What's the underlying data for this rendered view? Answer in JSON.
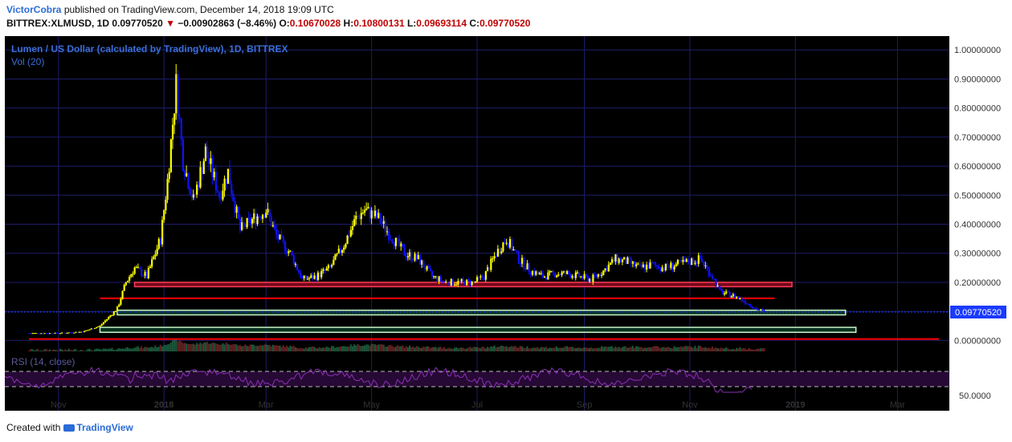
{
  "header": {
    "author": "VictorCobra",
    "published_text": "published on TradingView.com, December 14, 2018 19:09 UTC",
    "symbol": "BITTREX:XLMUSD, 1D",
    "price": "0.09770520",
    "change": "−0.00902863 (−8.46%)",
    "open_label": "O:",
    "open": "0.10670028",
    "high_label": "H:",
    "high": "0.10800131",
    "low_label": "L:",
    "low": "0.09693114",
    "close_label": "C:",
    "close": "0.09770520"
  },
  "footer": {
    "created_with": "Created with",
    "brand": "TradingView"
  },
  "colors": {
    "background": "#000000",
    "grid": "#1d1d6b",
    "up_candle": "#ffff00",
    "down_candle": "#1010ff",
    "resistance": "#ff0000",
    "support": "#c8f5c8",
    "rsi": "#8b2fb8",
    "last_price": "#1a3aff"
  },
  "chart_data": {
    "type": "line",
    "title": "Lumen / US Dollar (calculated by TradingView), 1D, BITTREX",
    "volume_label": "Vol (20)",
    "rsi_label": "RSI (14, close)",
    "rsi_level_label": "50.0000",
    "last_price_label": "0.09770520",
    "x_ticks": [
      "Nov",
      "2018",
      "Mar",
      "May",
      "Jul",
      "Sep",
      "Nov",
      "2019",
      "Mar"
    ],
    "y_ticks": [
      "1.00000000",
      "0.90000000",
      "0.80000000",
      "0.70000000",
      "0.60000000",
      "0.50000000",
      "0.40000000",
      "0.30000000",
      "0.20000000",
      "0.10000000",
      "0.00000000"
    ],
    "ylim": [
      -0.01,
      1.02
    ],
    "x": [
      "2017-10-15",
      "2017-11-01",
      "2017-11-15",
      "2017-11-25",
      "2017-12-05",
      "2017-12-10",
      "2017-12-15",
      "2017-12-22",
      "2017-12-30",
      "2018-01-03",
      "2018-01-08",
      "2018-01-12",
      "2018-01-18",
      "2018-01-25",
      "2018-02-02",
      "2018-02-07",
      "2018-02-14",
      "2018-02-22",
      "2018-03-01",
      "2018-03-07",
      "2018-03-15",
      "2018-03-22",
      "2018-03-30",
      "2018-04-07",
      "2018-04-15",
      "2018-04-22",
      "2018-04-27",
      "2018-05-05",
      "2018-05-12",
      "2018-05-20",
      "2018-05-28",
      "2018-06-05",
      "2018-06-13",
      "2018-06-21",
      "2018-06-29",
      "2018-07-05",
      "2018-07-12",
      "2018-07-18",
      "2018-07-25",
      "2018-08-01",
      "2018-08-08",
      "2018-08-15",
      "2018-08-22",
      "2018-08-29",
      "2018-09-05",
      "2018-09-12",
      "2018-09-19",
      "2018-09-26",
      "2018-10-03",
      "2018-10-10",
      "2018-10-17",
      "2018-10-24",
      "2018-10-31",
      "2018-11-07",
      "2018-11-14",
      "2018-11-18",
      "2018-11-22",
      "2018-11-28",
      "2018-12-04",
      "2018-12-09",
      "2018-12-14"
    ],
    "series": [
      {
        "values": [
          0.025,
          0.025,
          0.03,
          0.05,
          0.11,
          0.2,
          0.25,
          0.22,
          0.35,
          0.55,
          0.88,
          0.62,
          0.48,
          0.65,
          0.5,
          0.58,
          0.38,
          0.42,
          0.45,
          0.36,
          0.3,
          0.21,
          0.22,
          0.25,
          0.33,
          0.42,
          0.45,
          0.42,
          0.36,
          0.3,
          0.28,
          0.22,
          0.2,
          0.2,
          0.2,
          0.22,
          0.3,
          0.35,
          0.28,
          0.24,
          0.22,
          0.23,
          0.23,
          0.22,
          0.21,
          0.24,
          0.28,
          0.27,
          0.25,
          0.26,
          0.25,
          0.26,
          0.27,
          0.28,
          0.22,
          0.17,
          0.16,
          0.15,
          0.13,
          0.11,
          0.098
        ]
      }
    ],
    "annotations": [
      {
        "kind": "zone",
        "color": "red",
        "from": "2017-12-15",
        "to": "2018-12-30",
        "y_low": 0.185,
        "y_high": 0.2
      },
      {
        "kind": "line",
        "color": "red",
        "from": "2017-11-25",
        "to": "2018-12-20",
        "y": 0.145
      },
      {
        "kind": "zone",
        "color": "green",
        "from": "2017-12-05",
        "to": "2019-01-30",
        "y_low": 0.088,
        "y_high": 0.104
      },
      {
        "kind": "zone",
        "color": "green",
        "from": "2017-11-25",
        "to": "2019-02-05",
        "y_low": 0.028,
        "y_high": 0.045
      },
      {
        "kind": "line",
        "color": "red",
        "from": "2017-10-15",
        "to": "2019-03-25",
        "y": 0.005
      }
    ]
  }
}
